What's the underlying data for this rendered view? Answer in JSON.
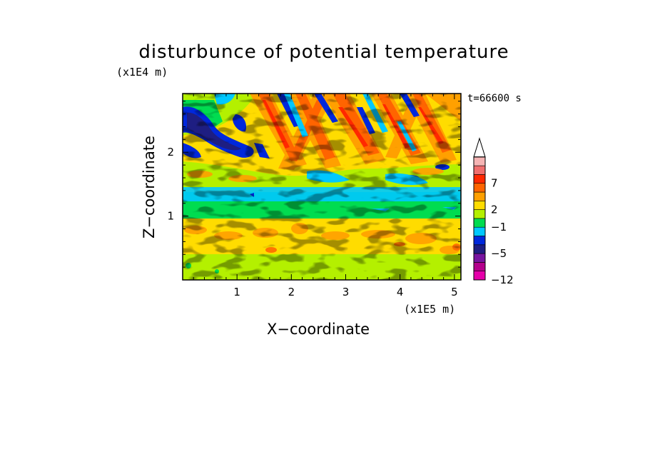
{
  "chart_data": {
    "type": "heatmap",
    "title": "disturbunce of potential temperature",
    "xlabel": "X−coordinate",
    "ylabel": "Z−coordinate",
    "x_unit": "(x1E5 m)",
    "z_unit": "(x1E4 m)",
    "time_label": "t=66600 s",
    "xlim": [
      0,
      5.12
    ],
    "ylim": [
      0,
      2.92
    ],
    "x_ticks": [
      1,
      2,
      3,
      4,
      5
    ],
    "x_tick_labels": [
      "1",
      "2",
      "3",
      "4",
      "5"
    ],
    "y_ticks": [
      1,
      2
    ],
    "y_tick_labels": [
      "1",
      "2"
    ],
    "colorbar": {
      "bins": [
        {
          "color": "#e600aa"
        },
        {
          "color": "#b4008c"
        },
        {
          "color": "#7814a0"
        },
        {
          "color": "#1e1e82"
        },
        {
          "color": "#0028dc"
        },
        {
          "color": "#00c8ff"
        },
        {
          "color": "#00dc50"
        },
        {
          "color": "#b4f000"
        },
        {
          "color": "#ffdc00"
        },
        {
          "color": "#ffa000"
        },
        {
          "color": "#ff6400"
        },
        {
          "color": "#ff2800"
        },
        {
          "color": "#f06e6e"
        },
        {
          "color": "#f5b4b4"
        }
      ],
      "labels": [
        {
          "text": "7",
          "after_bin": 11
        },
        {
          "text": "2",
          "after_bin": 8
        },
        {
          "text": "−1",
          "after_bin": 6
        },
        {
          "text": "−5",
          "after_bin": 3
        },
        {
          "text": "−12",
          "after_bin": 0
        }
      ]
    }
  }
}
